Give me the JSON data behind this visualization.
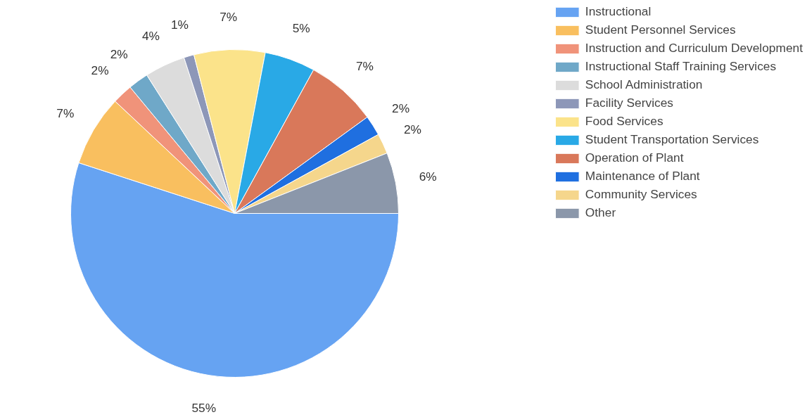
{
  "chart_data": {
    "type": "pie",
    "legend": "right",
    "categories": [
      "Instructional",
      "Student Personnel Services",
      "Instruction and Curriculum Development",
      "Instructional Staff Training Services",
      "School Administration",
      "Facility Services",
      "Food Services",
      "Student Transportation Services",
      "Operation of Plant",
      "Maintenance of Plant",
      "Community Services",
      "Other"
    ],
    "values": [
      55,
      7,
      2,
      2,
      4,
      1,
      7,
      5,
      7,
      2,
      2,
      6
    ],
    "value_labels": [
      "55%",
      "7%",
      "2%",
      "2%",
      "4%",
      "1%",
      "7%",
      "5%",
      "7%",
      "2%",
      "2%",
      "6%"
    ],
    "colors": [
      "#66a3f2",
      "#f9bf5f",
      "#f0937a",
      "#6fa8c8",
      "#dcdcdc",
      "#8d97b8",
      "#fbe38a",
      "#29a9e6",
      "#d9785a",
      "#1f6fe0",
      "#f5d68c",
      "#8b97aa"
    ]
  }
}
